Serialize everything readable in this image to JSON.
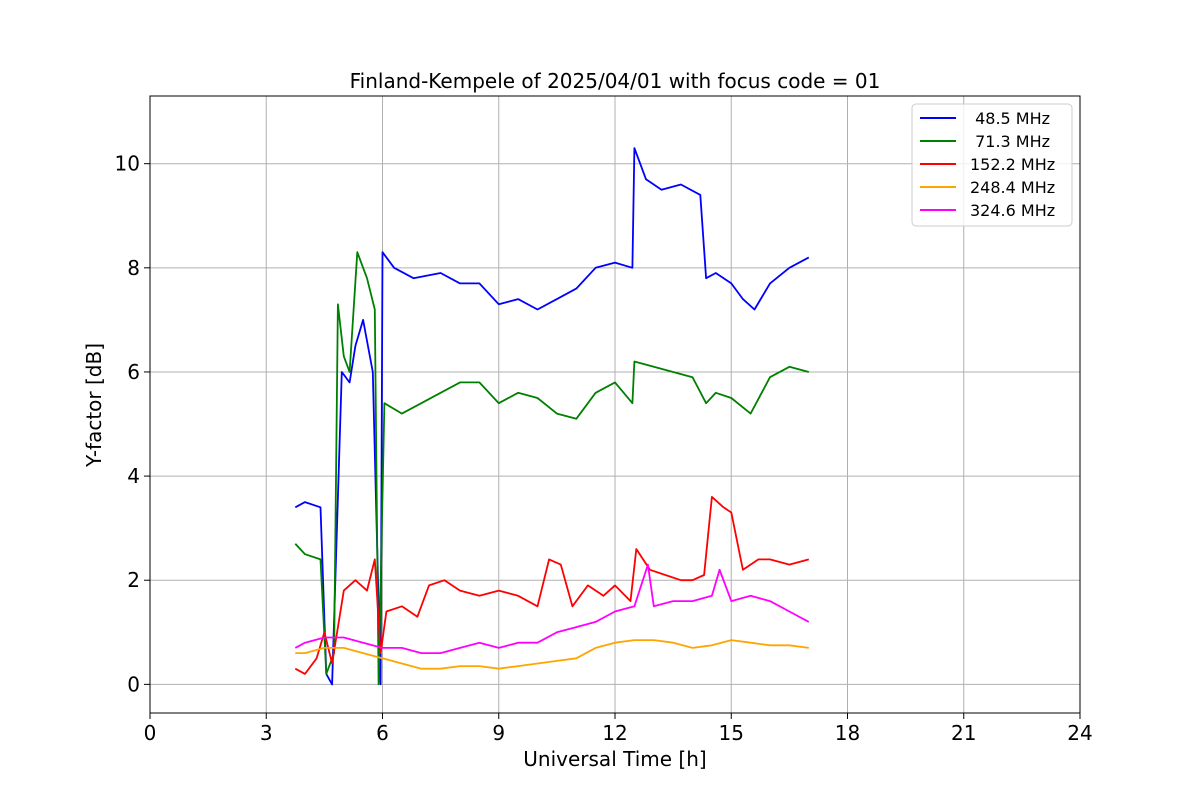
{
  "chart_data": {
    "type": "line",
    "title": "Finland-Kempele of 2025/04/01 with focus code = 01",
    "xlabel": "Universal Time [h]",
    "ylabel": "Y-factor [dB]",
    "xlim": [
      0,
      24
    ],
    "ylim": [
      -0.55,
      11.3
    ],
    "xticks": [
      0,
      3,
      6,
      9,
      12,
      15,
      18,
      21,
      24
    ],
    "xtick_labels": [
      "0",
      "3",
      "6",
      "9",
      "12",
      "15",
      "18",
      "21",
      "24"
    ],
    "yticks": [
      0,
      2,
      4,
      6,
      8,
      10
    ],
    "ytick_labels": [
      "0",
      "2",
      "4",
      "6",
      "8",
      "10"
    ],
    "grid": true,
    "legend_position": "top-right",
    "series": [
      {
        "name": " 48.5 MHz",
        "color": "#0000ff",
        "x": [
          3.75,
          4.0,
          4.4,
          4.55,
          4.7,
          4.95,
          5.15,
          5.3,
          5.5,
          5.75,
          5.95,
          6.0,
          6.3,
          6.8,
          7.5,
          8.0,
          8.5,
          9.0,
          9.5,
          10.0,
          10.5,
          11.0,
          11.5,
          12.0,
          12.45,
          12.5,
          12.8,
          13.2,
          13.7,
          14.2,
          14.35,
          14.6,
          15.0,
          15.3,
          15.6,
          16.0,
          16.5,
          17.0
        ],
        "y": [
          3.4,
          3.5,
          3.4,
          0.2,
          0.0,
          6.0,
          5.8,
          6.5,
          7.0,
          6.0,
          0.0,
          8.3,
          8.0,
          7.8,
          7.9,
          7.7,
          7.7,
          7.3,
          7.4,
          7.2,
          7.4,
          7.6,
          8.0,
          8.1,
          8.0,
          10.3,
          9.7,
          9.5,
          9.6,
          9.4,
          7.8,
          7.9,
          7.7,
          7.4,
          7.2,
          7.7,
          8.0,
          8.2
        ]
      },
      {
        "name": " 71.3 MHz",
        "color": "#008000",
        "x": [
          3.75,
          4.0,
          4.4,
          4.55,
          4.75,
          4.85,
          5.0,
          5.15,
          5.35,
          5.6,
          5.8,
          5.9,
          6.05,
          6.5,
          7.0,
          7.5,
          8.0,
          8.5,
          9.0,
          9.5,
          10.0,
          10.5,
          11.0,
          11.5,
          12.0,
          12.45,
          12.5,
          13.0,
          13.5,
          14.0,
          14.35,
          14.6,
          15.0,
          15.5,
          16.0,
          16.5,
          17.0
        ],
        "y": [
          2.7,
          2.5,
          2.4,
          0.2,
          0.6,
          7.3,
          6.3,
          6.0,
          8.3,
          7.8,
          7.2,
          0.0,
          5.4,
          5.2,
          5.4,
          5.6,
          5.8,
          5.8,
          5.4,
          5.6,
          5.5,
          5.2,
          5.1,
          5.6,
          5.8,
          5.4,
          6.2,
          6.1,
          6.0,
          5.9,
          5.4,
          5.6,
          5.5,
          5.2,
          5.9,
          6.1,
          6.0
        ]
      },
      {
        "name": "152.2 MHz",
        "color": "#ff0000",
        "x": [
          3.75,
          4.0,
          4.3,
          4.5,
          4.7,
          5.0,
          5.3,
          5.6,
          5.8,
          5.95,
          6.1,
          6.5,
          6.9,
          7.2,
          7.6,
          8.0,
          8.5,
          9.0,
          9.5,
          10.0,
          10.3,
          10.6,
          10.9,
          11.3,
          11.7,
          12.0,
          12.4,
          12.55,
          12.9,
          13.3,
          13.7,
          14.0,
          14.3,
          14.5,
          14.8,
          15.0,
          15.3,
          15.7,
          16.0,
          16.5,
          17.0
        ],
        "y": [
          0.3,
          0.2,
          0.5,
          1.0,
          0.4,
          1.8,
          2.0,
          1.8,
          2.4,
          0.6,
          1.4,
          1.5,
          1.3,
          1.9,
          2.0,
          1.8,
          1.7,
          1.8,
          1.7,
          1.5,
          2.4,
          2.3,
          1.5,
          1.9,
          1.7,
          1.9,
          1.6,
          2.6,
          2.2,
          2.1,
          2.0,
          2.0,
          2.1,
          3.6,
          3.4,
          3.3,
          2.2,
          2.4,
          2.4,
          2.3,
          2.4
        ]
      },
      {
        "name": "248.4 MHz",
        "color": "#ffa500",
        "x": [
          3.75,
          4.0,
          4.5,
          5.0,
          5.5,
          6.0,
          6.5,
          7.0,
          7.5,
          8.0,
          8.5,
          9.0,
          9.5,
          10.0,
          10.5,
          11.0,
          11.5,
          12.0,
          12.5,
          13.0,
          13.5,
          14.0,
          14.5,
          15.0,
          15.5,
          16.0,
          16.5,
          17.0
        ],
        "y": [
          0.6,
          0.6,
          0.7,
          0.7,
          0.6,
          0.5,
          0.4,
          0.3,
          0.3,
          0.35,
          0.35,
          0.3,
          0.35,
          0.4,
          0.45,
          0.5,
          0.7,
          0.8,
          0.85,
          0.85,
          0.8,
          0.7,
          0.75,
          0.85,
          0.8,
          0.75,
          0.75,
          0.7
        ]
      },
      {
        "name": "324.6 MHz",
        "color": "#ff00ff",
        "x": [
          3.75,
          4.0,
          4.5,
          5.0,
          5.5,
          6.0,
          6.5,
          7.0,
          7.5,
          8.0,
          8.5,
          9.0,
          9.5,
          10.0,
          10.5,
          11.0,
          11.5,
          12.0,
          12.5,
          12.85,
          13.0,
          13.5,
          14.0,
          14.5,
          14.7,
          15.0,
          15.5,
          16.0,
          16.5,
          17.0
        ],
        "y": [
          0.7,
          0.8,
          0.9,
          0.9,
          0.8,
          0.7,
          0.7,
          0.6,
          0.6,
          0.7,
          0.8,
          0.7,
          0.8,
          0.8,
          1.0,
          1.1,
          1.2,
          1.4,
          1.5,
          2.3,
          1.5,
          1.6,
          1.6,
          1.7,
          2.2,
          1.6,
          1.7,
          1.6,
          1.4,
          1.2
        ]
      }
    ]
  }
}
